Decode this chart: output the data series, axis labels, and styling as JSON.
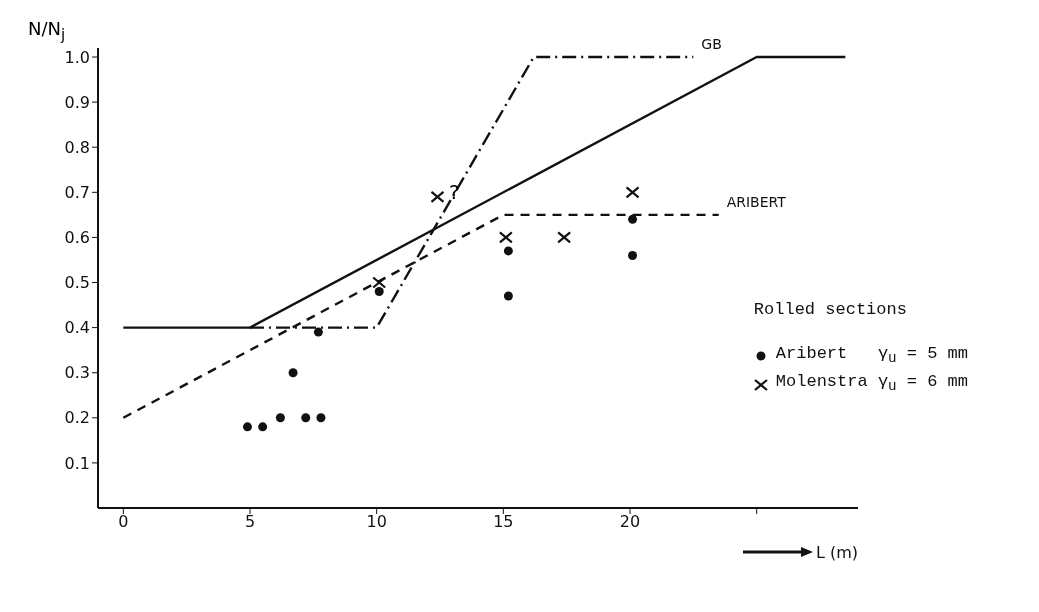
{
  "chart_data": {
    "type": "line",
    "xlabel": "L (m)",
    "ylabel": "N/N$_{j}$",
    "legend_title": "Rolled sections",
    "legend": "right",
    "xlim": [
      -1,
      29
    ],
    "xticks": [
      0,
      5,
      10,
      15,
      20,
      {
        "value": 25,
        "label": null
      }
    ],
    "ylim": [
      0,
      1.02
    ],
    "yticks": [
      {
        "value": 0.1,
        "label": "0.1"
      },
      0.2,
      0.3,
      0.4,
      0.5,
      0.6,
      0.7,
      0.8,
      0.9,
      {
        "value": 1,
        "label": "1.0"
      }
    ],
    "grid": false,
    "series": [
      {
        "color": "#111111",
        "line_style": "solid",
        "marker": "none",
        "x": [
          0,
          5,
          25,
          28.5
        ],
        "values": [
          0.4,
          0.4,
          1.0,
          1.0
        ]
      },
      {
        "name": "ARIBERT",
        "color": "#111111",
        "line_style": "dashed",
        "marker": "none",
        "x": [
          0,
          15,
          23.5
        ],
        "values": [
          0.2,
          0.65,
          0.65
        ]
      },
      {
        "name": "GB",
        "color": "#111111",
        "line_style": "dotted",
        "marker": "none",
        "x": [
          5,
          10,
          16.2,
          22.5
        ],
        "values": [
          0.4,
          0.4,
          1.0,
          1.0
        ]
      },
      {
        "type": "scatter",
        "name": "Aribert   γ$_{u}$ = 5 mm",
        "color": "#111111",
        "marker": "circle",
        "x": [
          4.9,
          5.5,
          6.2,
          6.7,
          7.2,
          7.8,
          7.7,
          10.1,
          15.2,
          15.2,
          20.1,
          20.1
        ],
        "values": [
          0.18,
          0.18,
          0.2,
          0.3,
          0.2,
          0.2,
          0.39,
          0.48,
          0.57,
          0.47,
          0.64,
          0.56
        ]
      },
      {
        "type": "scatter",
        "name": "Molenstra γ$_{u}$ = 6 mm",
        "color": "#111111",
        "marker": "cross",
        "x": [
          12.4,
          10.1,
          15.1,
          17.4,
          20.1
        ],
        "values": [
          0.69,
          0.5,
          0.6,
          0.6,
          0.7
        ]
      }
    ],
    "annotations": [
      "?"
    ]
  }
}
